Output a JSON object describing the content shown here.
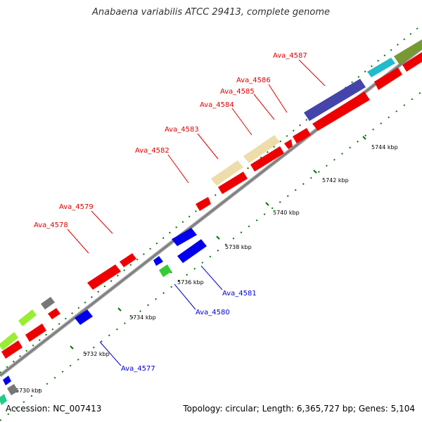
{
  "title": "Anabaena variabilis ATCC 29413, complete genome",
  "footer": {
    "accession": "Accession: NC_007413",
    "stats": "Topology: circular; Length: 6,365,727 bp; Genes: 5,104"
  },
  "colors": {
    "forward_gene_label": "#dd0000",
    "reverse_gene_label": "#0000cc",
    "backbone": "#999999",
    "tick": "#007700"
  },
  "tick_labels": [
    "5730 kbp",
    "5732 kbp",
    "5734 kbp",
    "5736 kbp",
    "5738 kbp",
    "5740 kbp",
    "5742 kbp",
    "5744 kbp"
  ],
  "gene_labels": [
    "Ava_4587",
    "Ava_4586",
    "Ava_4585",
    "Ava_4584",
    "Ava_4583",
    "Ava_4582",
    "Ava_4579",
    "Ava_4578",
    "Ava_4581",
    "Ava_4580",
    "Ava_4577"
  ]
}
